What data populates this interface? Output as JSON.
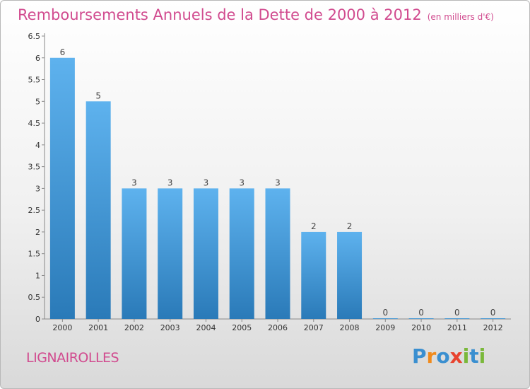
{
  "title": "Remboursements Annuels de la Dette de 2000 à 2012",
  "unit_note": "(en milliers d'€)",
  "commune": "LIGNAIROLLES",
  "logo": {
    "text": "Proxiti",
    "letters": [
      {
        "ch": "P",
        "color": "#3a8fd0"
      },
      {
        "ch": "r",
        "color": "#f08a1c"
      },
      {
        "ch": "o",
        "color": "#3a8fd0"
      },
      {
        "ch": "x",
        "color": "#e8432e"
      },
      {
        "ch": "i",
        "color": "#7ab83a"
      },
      {
        "ch": "t",
        "color": "#3a8fd0"
      },
      {
        "ch": "i",
        "color": "#7ab83a"
      }
    ]
  },
  "colors": {
    "bar_top": "#5eb2ee",
    "bar_bottom": "#2a7ab8",
    "title": "#d14b8f"
  },
  "chart_data": {
    "type": "bar",
    "categories": [
      "2000",
      "2001",
      "2002",
      "2003",
      "2004",
      "2005",
      "2006",
      "2007",
      "2008",
      "2009",
      "2010",
      "2011",
      "2012"
    ],
    "values": [
      6,
      5,
      3,
      3,
      3,
      3,
      3,
      2,
      2,
      0,
      0,
      0,
      0
    ],
    "title": "Remboursements Annuels de la Dette de 2000 à 2012",
    "xlabel": "",
    "ylabel": "",
    "ylim": [
      0,
      6.5
    ],
    "yticks": [
      "0",
      "0.5",
      "1",
      "1.5",
      "2",
      "2.5",
      "3",
      "3.5",
      "4",
      "4.5",
      "5",
      "5.5",
      "6",
      "6.5"
    ],
    "grid": false,
    "legend": "none"
  }
}
